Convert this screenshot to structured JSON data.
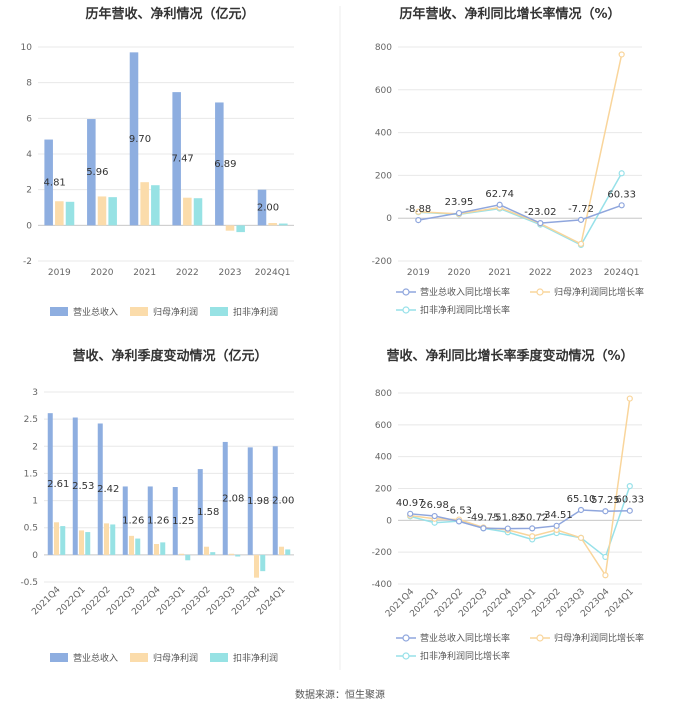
{
  "colors": {
    "revenue_bar": "#8eaee0",
    "parent_bar": "#fbdcab",
    "deduct_bar": "#97e2e4",
    "revenue_line": "#8fa6dd",
    "parent_line": "#f9d59b",
    "deduct_line": "#97e1e9",
    "grid": "#e8e8e8",
    "axis": "#cccccc"
  },
  "source": "数据来源：恒生聚源",
  "chart_data": [
    {
      "id": "annual_bar",
      "type": "bar",
      "title": "历年营收、净利情况（亿元）",
      "categories": [
        "2019",
        "2020",
        "2021",
        "2022",
        "2023",
        "2024Q1"
      ],
      "ylim": [
        -2,
        10
      ],
      "yticks": [
        -2,
        0,
        2,
        4,
        6,
        8,
        10
      ],
      "series": [
        {
          "name": "营业总收入",
          "values": [
            4.81,
            5.96,
            9.7,
            7.47,
            6.89,
            2.0
          ]
        },
        {
          "name": "归母净利润",
          "values": [
            1.35,
            1.62,
            2.42,
            1.55,
            -0.3,
            0.13
          ]
        },
        {
          "name": "扣非净利润",
          "values": [
            1.32,
            1.58,
            2.25,
            1.52,
            -0.38,
            0.1
          ]
        }
      ],
      "data_labels": [
        "4.81",
        "5.96",
        "9.70",
        "7.47",
        "6.89",
        "2.00"
      ],
      "legend": "bottom"
    },
    {
      "id": "annual_growth",
      "type": "line",
      "title": "历年营收、净利同比增长率情况（%）",
      "categories": [
        "2019",
        "2020",
        "2021",
        "2022",
        "2023",
        "2024Q1"
      ],
      "ylim": [
        -200,
        800
      ],
      "yticks": [
        -200,
        0,
        200,
        400,
        600,
        800
      ],
      "series": [
        {
          "name": "营业总收入同比增长率",
          "values": [
            -8.88,
            23.95,
            62.74,
            -23.02,
            -7.72,
            60.33
          ]
        },
        {
          "name": "归母净利润同比增长率",
          "values": [
            30,
            20,
            50,
            -25,
            -120,
            765
          ]
        },
        {
          "name": "扣非净利润同比增长率",
          "values": [
            28,
            18,
            45,
            -30,
            -125,
            210
          ]
        }
      ],
      "data_labels": [
        "-8.88",
        "23.95",
        "62.74",
        "-23.02",
        "-7.72",
        "60.33"
      ],
      "legend": "bottom"
    },
    {
      "id": "quarterly_bar",
      "type": "bar",
      "title": "营收、净利季度变动情况（亿元）",
      "categories": [
        "2021Q4",
        "2022Q1",
        "2022Q2",
        "2022Q3",
        "2022Q4",
        "2023Q1",
        "2023Q2",
        "2023Q3",
        "2023Q4",
        "2024Q1"
      ],
      "ylim": [
        -0.5,
        3
      ],
      "yticks": [
        -0.5,
        0,
        0.5,
        1,
        1.5,
        2,
        2.5,
        3
      ],
      "series": [
        {
          "name": "营业总收入",
          "values": [
            2.61,
            2.53,
            2.42,
            1.26,
            1.26,
            1.25,
            1.58,
            2.08,
            1.98,
            2.0
          ]
        },
        {
          "name": "归母净利润",
          "values": [
            0.6,
            0.45,
            0.58,
            0.35,
            0.2,
            0.02,
            0.15,
            0.02,
            -0.42,
            0.15
          ]
        },
        {
          "name": "扣非净利润",
          "values": [
            0.53,
            0.42,
            0.56,
            0.3,
            0.23,
            -0.1,
            0.05,
            -0.03,
            -0.3,
            0.1
          ]
        }
      ],
      "data_labels": [
        "2.61",
        "2.53",
        "2.42",
        "1.26",
        "1.26",
        "1.25",
        "1.58",
        "2.08",
        "1.98",
        "2.00"
      ],
      "legend": "bottom"
    },
    {
      "id": "quarterly_growth",
      "type": "line",
      "title": "营收、净利同比增长率季度变动情况（%）",
      "categories": [
        "2021Q4",
        "2022Q1",
        "2022Q2",
        "2022Q3",
        "2022Q4",
        "2023Q1",
        "2023Q2",
        "2023Q3",
        "2023Q4",
        "2024Q1"
      ],
      "ylim": [
        -400,
        800
      ],
      "yticks": [
        -400,
        -200,
        0,
        200,
        400,
        600,
        800
      ],
      "series": [
        {
          "name": "营业总收入同比增长率",
          "values": [
            40.97,
            26.98,
            -6.53,
            -49.75,
            -51.82,
            -50.72,
            -34.51,
            65.1,
            57.25,
            60.33
          ]
        },
        {
          "name": "归母净利润同比增长率",
          "values": [
            30,
            10,
            5,
            -45,
            -60,
            -100,
            -60,
            -110,
            -345,
            765
          ]
        },
        {
          "name": "扣非净利润同比增长率",
          "values": [
            25,
            -15,
            -5,
            -50,
            -75,
            -120,
            -80,
            -110,
            -230,
            215
          ]
        }
      ],
      "data_labels": [
        "40.97",
        "26.98",
        "-6.53",
        "-49.75",
        "-51.82",
        "-50.72",
        "-34.51",
        "65.10",
        "57.25",
        "60.33"
      ],
      "legend": "bottom"
    }
  ]
}
